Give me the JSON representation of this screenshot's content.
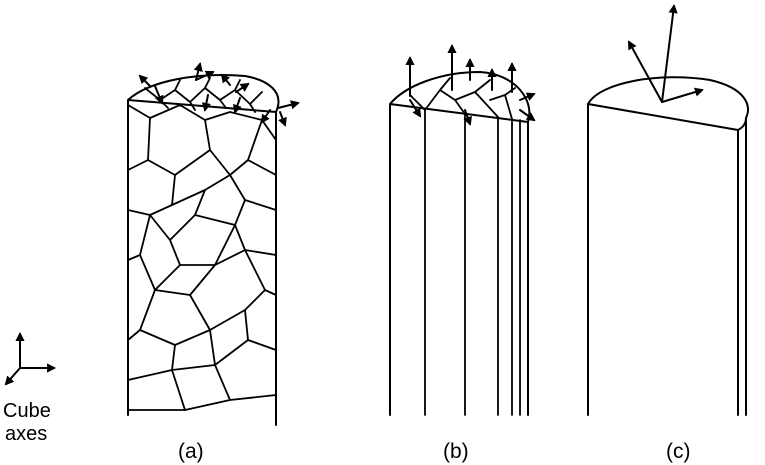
{
  "panels": [
    {
      "id": "a",
      "label": "(a)"
    },
    {
      "id": "b",
      "label": "(b)"
    },
    {
      "id": "c",
      "label": "(c)"
    }
  ],
  "axes_legend": {
    "line1": "Cube",
    "line2": "axes"
  },
  "colors": {
    "ink": "#000000",
    "background": "#ffffff"
  }
}
